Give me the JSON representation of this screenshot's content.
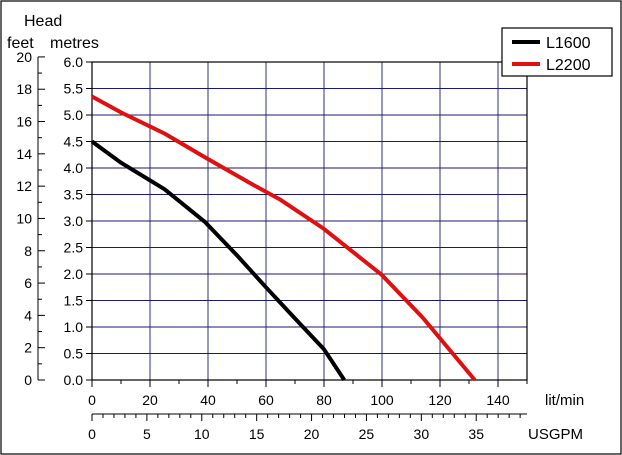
{
  "chart_data": {
    "type": "line",
    "title": "",
    "xlabel": "",
    "ylabel": "",
    "head_label": "Head",
    "y_axes": [
      {
        "label": "feet",
        "ticks": [
          "20",
          "18",
          "16",
          "14",
          "12",
          "10",
          "8",
          "6",
          "4",
          "2",
          "0"
        ]
      },
      {
        "label": "metres",
        "ticks": [
          "6.0",
          "5.5",
          "5.0",
          "4.5",
          "4.0",
          "3.5",
          "3.0",
          "2.5",
          "2.0",
          "1.5",
          "1.0",
          "0.5",
          "0.0"
        ]
      }
    ],
    "x_axes": [
      {
        "label": "lit/min",
        "ticks": [
          "0",
          "20",
          "40",
          "60",
          "80",
          "100",
          "120",
          "140"
        ]
      },
      {
        "label": "USGPM",
        "ticks": [
          "0",
          "5",
          "10",
          "15",
          "20",
          "25",
          "30",
          "35"
        ]
      }
    ],
    "xlim": [
      0,
      150
    ],
    "ylim": [
      0,
      6
    ],
    "grid": true,
    "legend_position": "top-right",
    "series": [
      {
        "name": "L1600",
        "color": "#000000",
        "x": [
          0,
          10,
          25,
          39,
          50,
          60,
          70,
          80,
          87
        ],
        "y": [
          4.5,
          4.1,
          3.6,
          2.98,
          2.35,
          1.75,
          1.16,
          0.58,
          0.0
        ]
      },
      {
        "name": "L2200",
        "color": "#e01010",
        "x": [
          0,
          10,
          25,
          39,
          55,
          65,
          80,
          100,
          114,
          132
        ],
        "y": [
          5.35,
          5.05,
          4.65,
          4.2,
          3.7,
          3.4,
          2.85,
          1.98,
          1.18,
          0.0
        ]
      }
    ]
  }
}
